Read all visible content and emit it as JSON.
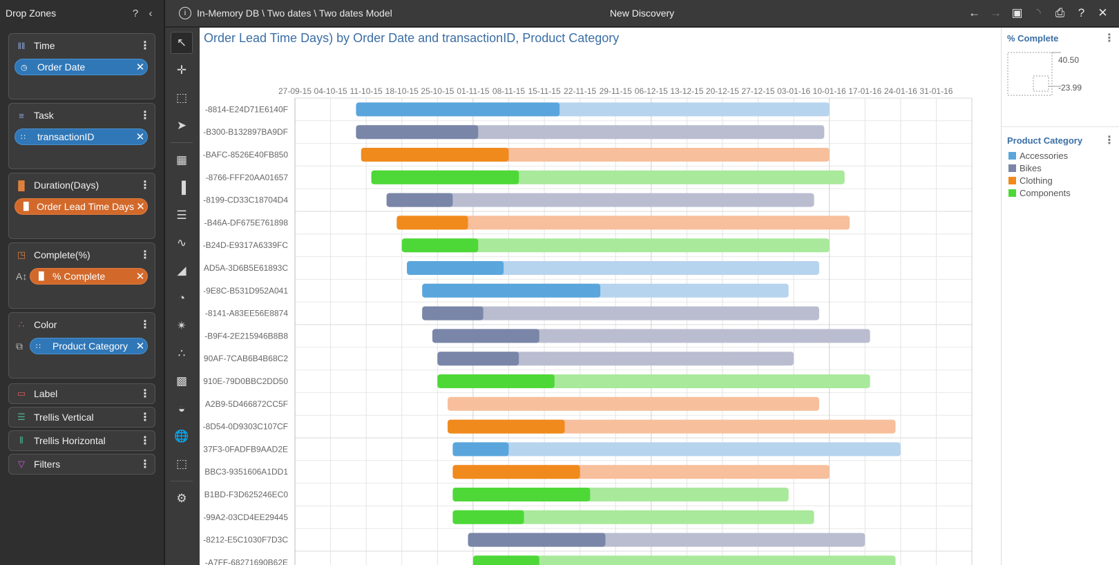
{
  "dropzones": {
    "title": "Drop Zones",
    "zones": [
      {
        "label": "Time",
        "icon": "time-icon",
        "pill": {
          "label": "Order Date",
          "color": "blue",
          "icon": "date-icon"
        }
      },
      {
        "label": "Task",
        "icon": "task-icon",
        "pill": {
          "label": "transactionID",
          "color": "blue",
          "icon": "grid-icon"
        }
      },
      {
        "label": "Duration(Days)",
        "icon": "duration-icon",
        "pill": {
          "label": "Order Lead Time Days",
          "color": "orange",
          "icon": "bar-icon"
        }
      },
      {
        "label": "Complete(%)",
        "icon": "complete-icon",
        "pill": {
          "label": "% Complete",
          "color": "orange",
          "icon": "bar-icon"
        }
      },
      {
        "label": "Color",
        "icon": "color-icon",
        "pill": {
          "label": "Product Category",
          "color": "blue",
          "icon": "grid-icon"
        }
      },
      {
        "label": "Label",
        "icon": "label-icon"
      },
      {
        "label": "Trellis Vertical",
        "icon": "trellis-vertical-icon"
      },
      {
        "label": "Trellis Horizontal",
        "icon": "trellis-horizontal-icon"
      },
      {
        "label": "Filters",
        "icon": "filter-icon"
      }
    ]
  },
  "topbar": {
    "breadcrumb": "In-Memory DB \\ Two dates \\ Two dates Model",
    "discovery_title": "New Discovery"
  },
  "chart_title": "Order Lead Time Days) by Order Date and transactionID, Product Category",
  "legend": {
    "complete_title": "% Complete",
    "complete_max": "40.50",
    "complete_min": "-23.99",
    "category_title": "Product Category",
    "items": [
      {
        "label": "Accessories",
        "color": "#5aa6dc"
      },
      {
        "label": "Bikes",
        "color": "#7a86a8"
      },
      {
        "label": "Clothing",
        "color": "#f08a1c"
      },
      {
        "label": "Components",
        "color": "#4ed838"
      }
    ]
  },
  "chart_data": {
    "type": "gantt",
    "x_ticks": [
      "27-09-15",
      "04-10-15",
      "11-10-15",
      "18-10-15",
      "25-10-15",
      "01-11-15",
      "08-11-15",
      "15-11-15",
      "22-11-15",
      "29-11-15",
      "06-12-15",
      "13-12-15",
      "20-12-15",
      "27-12-15",
      "03-01-16",
      "10-01-16",
      "17-01-16",
      "24-01-16",
      "31-01-16"
    ],
    "x_start": "2015-09-27",
    "x_end": "2016-02-07",
    "tasks": [
      {
        "label": "-8814-E24D71E6140F",
        "category": "Accessories",
        "start": "2015-10-09",
        "end": "2016-01-10",
        "done_end": "2015-11-18"
      },
      {
        "label": "-B300-B132897BA9DF",
        "category": "Bikes",
        "start": "2015-10-09",
        "end": "2016-01-09",
        "done_end": "2015-11-02"
      },
      {
        "label": "-BAFC-8526E40FB850",
        "category": "Clothing",
        "start": "2015-10-10",
        "end": "2016-01-10",
        "done_end": "2015-11-08"
      },
      {
        "label": "-8766-FFF20AA01657",
        "category": "Components",
        "start": "2015-10-12",
        "end": "2016-01-13",
        "done_end": "2015-11-10"
      },
      {
        "label": "-8199-CD33C18704D4",
        "category": "Bikes",
        "start": "2015-10-15",
        "end": "2016-01-07",
        "done_end": "2015-10-28"
      },
      {
        "label": "-B46A-DF675E761898",
        "category": "Clothing",
        "start": "2015-10-17",
        "end": "2016-01-14",
        "done_end": "2015-10-31"
      },
      {
        "label": "-B24D-E9317A6339FC",
        "category": "Components",
        "start": "2015-10-18",
        "end": "2016-01-10",
        "done_end": "2015-11-02"
      },
      {
        "label": "AD5A-3D6B5E61893C",
        "category": "Accessories",
        "start": "2015-10-19",
        "end": "2016-01-08",
        "done_end": "2015-11-07"
      },
      {
        "label": "-9E8C-B531D952A041",
        "category": "Accessories",
        "start": "2015-10-22",
        "end": "2016-01-02",
        "done_end": "2015-11-26"
      },
      {
        "label": "-8141-A83EE56E8874",
        "category": "Bikes",
        "start": "2015-10-22",
        "end": "2016-01-08",
        "done_end": "2015-11-03"
      },
      {
        "label": "-B9F4-2E215946B8B8",
        "category": "Bikes",
        "start": "2015-10-24",
        "end": "2016-01-18",
        "done_end": "2015-11-14"
      },
      {
        "label": "90AF-7CAB6B4B68C2",
        "category": "Bikes",
        "start": "2015-10-25",
        "end": "2016-01-03",
        "done_end": "2015-11-10"
      },
      {
        "label": "910E-79D0BBC2DD50",
        "category": "Components",
        "start": "2015-10-25",
        "end": "2016-01-18",
        "done_end": "2015-11-17"
      },
      {
        "label": "A2B9-5D466872CC5F",
        "category": "Clothing",
        "start": "2015-10-27",
        "end": "2016-01-08",
        "done_end": "2015-10-27"
      },
      {
        "label": "-8D54-0D9303C107CF",
        "category": "Clothing",
        "start": "2015-10-27",
        "end": "2016-01-23",
        "done_end": "2015-11-19"
      },
      {
        "label": "37F3-0FADFB9AAD2E",
        "category": "Accessories",
        "start": "2015-10-28",
        "end": "2016-01-24",
        "done_end": "2015-11-08"
      },
      {
        "label": "BBC3-9351606A1DD1",
        "category": "Clothing",
        "start": "2015-10-28",
        "end": "2016-01-10",
        "done_end": "2015-11-22"
      },
      {
        "label": "B1BD-F3D625246EC0",
        "category": "Components",
        "start": "2015-10-28",
        "end": "2016-01-02",
        "done_end": "2015-11-24"
      },
      {
        "label": "-99A2-03CD4EE29445",
        "category": "Components",
        "start": "2015-10-28",
        "end": "2016-01-07",
        "done_end": "2015-11-11"
      },
      {
        "label": "-8212-E5C1030F7D3C",
        "category": "Bikes",
        "start": "2015-10-31",
        "end": "2016-01-17",
        "done_end": "2015-11-27"
      },
      {
        "label": "-A7FF-68271690B62E",
        "category": "Components",
        "start": "2015-11-01",
        "end": "2016-01-23",
        "done_end": "2015-11-14"
      }
    ],
    "colors": {
      "Accessories": {
        "done": "#5aa6dc",
        "rest": "#b6d4ee"
      },
      "Bikes": {
        "done": "#7a86a8",
        "rest": "#babdd0"
      },
      "Clothing": {
        "done": "#f08a1c",
        "rest": "#f7bf9c"
      },
      "Components": {
        "done": "#4ed838",
        "rest": "#a9e99b"
      }
    }
  }
}
